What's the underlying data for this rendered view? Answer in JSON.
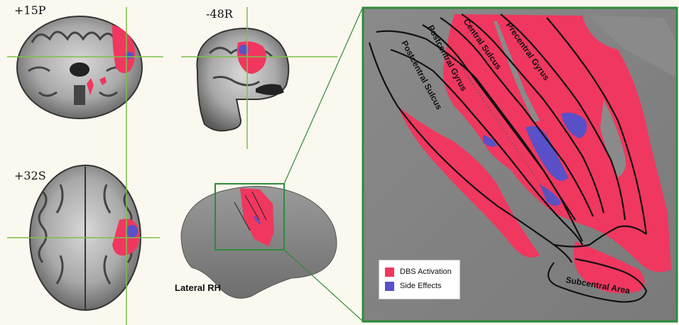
{
  "slices": {
    "coronal_label": "+15P",
    "sagittal_label": "-48R",
    "axial_label": "+32S"
  },
  "surface": {
    "view_label": "Lateral RH"
  },
  "zoom": {
    "sulci_labels": {
      "postcentral_sulcus": "Postcentral Sulcus",
      "postcentral_gyrus": "Postcentral Gyrus",
      "central_sulcus": "Central Sulcus",
      "precentral_gyrus": "Precentral Gyrus",
      "subcentral_area": "Subcentral Area"
    }
  },
  "legend": {
    "items": [
      {
        "label": "DBS Activation",
        "color": "#f0375f"
      },
      {
        "label": "Side Effects",
        "color": "#5a50c8"
      }
    ]
  },
  "colors": {
    "activation": "#f0375f",
    "side_effects": "#5a50c8",
    "crosshair": "#7cc04a",
    "frame": "#2e8b3a",
    "cortex": "#8a8a8a"
  }
}
